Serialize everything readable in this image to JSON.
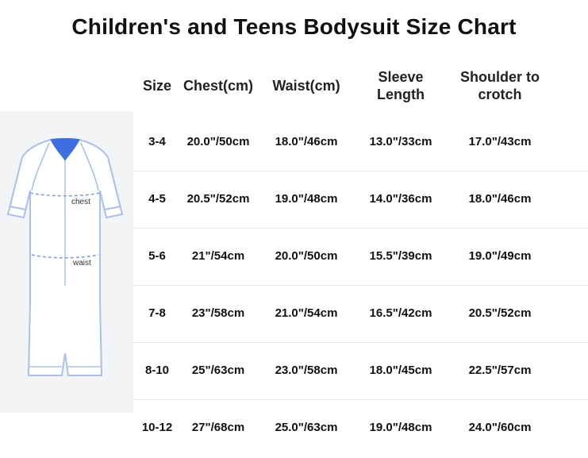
{
  "title": "Children's and Teens Bodysuit Size Chart",
  "figure": {
    "chest_label": "chest",
    "waist_label": "waist",
    "colors": {
      "outline": "#a9c0ef",
      "collar": "#3d6fe0",
      "panel": "#f3f4f6"
    }
  },
  "table": {
    "headers": [
      {
        "lines": [
          "Size"
        ]
      },
      {
        "lines": [
          "Chest(cm)"
        ]
      },
      {
        "lines": [
          "Waist(cm)"
        ]
      },
      {
        "lines": [
          "Sleeve",
          "Length"
        ]
      },
      {
        "lines": [
          "Shoulder to",
          "crotch"
        ]
      }
    ],
    "rows": [
      [
        "3-4",
        "20.0\"/50cm",
        "18.0\"/46cm",
        "13.0\"/33cm",
        "17.0\"/43cm"
      ],
      [
        "4-5",
        "20.5\"/52cm",
        "19.0\"/48cm",
        "14.0\"/36cm",
        "18.0\"/46cm"
      ],
      [
        "5-6",
        "21\"/54cm",
        "20.0\"/50cm",
        "15.5\"/39cm",
        "19.0\"/49cm"
      ],
      [
        "7-8",
        "23\"/58cm",
        "21.0\"/54cm",
        "16.5\"/42cm",
        "20.5\"/52cm"
      ],
      [
        "8-10",
        "25\"/63cm",
        "23.0\"/58cm",
        "18.0\"/45cm",
        "22.5\"/57cm"
      ],
      [
        "10-12",
        "27\"/68cm",
        "25.0\"/63cm",
        "19.0\"/48cm",
        "24.0\"/60cm"
      ]
    ]
  }
}
